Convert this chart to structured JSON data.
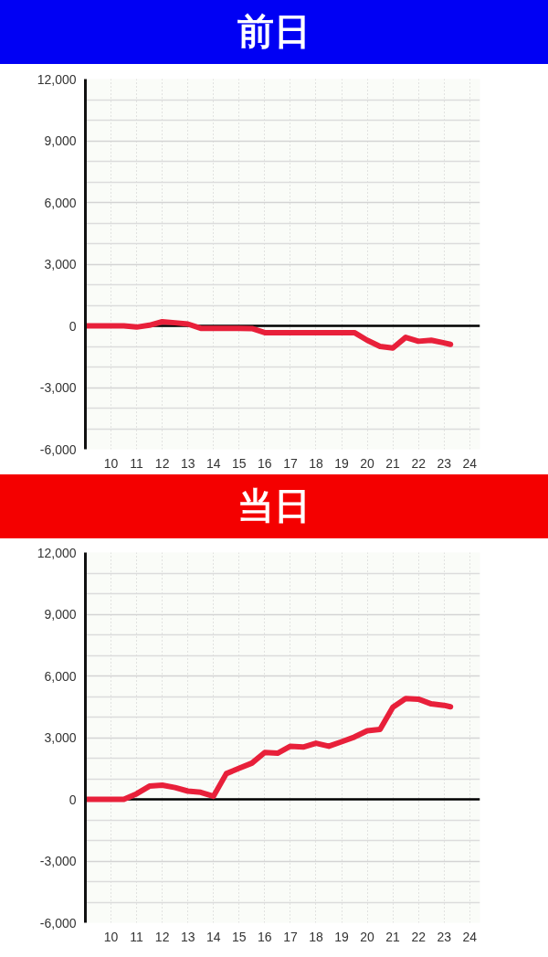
{
  "chart_data": [
    {
      "type": "line",
      "title": "前日",
      "x": [
        9,
        9.5,
        10,
        10.5,
        11,
        11.5,
        12,
        12.5,
        13,
        13.5,
        14,
        14.5,
        15,
        15.5,
        16,
        16.5,
        17,
        17.5,
        18,
        18.5,
        19,
        19.5,
        20,
        20.5,
        21,
        21.5,
        22,
        22.5,
        23,
        23.25
      ],
      "series": [
        {
          "color": "#e8203a",
          "values": [
            0,
            0,
            0,
            0,
            -60,
            30,
            200,
            150,
            90,
            -120,
            -120,
            -120,
            -120,
            -130,
            -330,
            -330,
            -330,
            -330,
            -330,
            -330,
            -330,
            -330,
            -700,
            -1000,
            -1080,
            -560,
            -750,
            -700,
            -830,
            -900
          ]
        }
      ],
      "xlim": [
        9,
        24.4
      ],
      "ylim": [
        -6000,
        12000
      ],
      "xticks": [
        10,
        11,
        12,
        13,
        14,
        15,
        16,
        17,
        18,
        19,
        20,
        21,
        22,
        23,
        24
      ],
      "yticks": [
        {
          "value": -6000,
          "label": "-6,000"
        },
        {
          "value": -3000,
          "label": "-3,000"
        },
        0,
        {
          "value": 3000,
          "label": "3,000"
        },
        {
          "value": 6000,
          "label": "6,000"
        },
        {
          "value": 9000,
          "label": "9,000"
        },
        {
          "value": 12000,
          "label": "12,000"
        }
      ],
      "grid": true,
      "ref_lines": [
        {
          "axis": "y",
          "value": 0,
          "color": "#000000"
        }
      ]
    },
    {
      "type": "line",
      "title": "当日",
      "x": [
        9,
        9.5,
        10,
        10.5,
        11,
        11.5,
        12,
        12.5,
        13,
        13.5,
        14,
        14.5,
        15,
        15.5,
        16,
        16.5,
        17,
        17.5,
        18,
        18.5,
        19,
        19.5,
        20,
        20.5,
        21,
        21.5,
        22,
        22.5,
        23,
        23.25
      ],
      "series": [
        {
          "color": "#e8203a",
          "values": [
            0,
            0,
            0,
            0,
            270,
            640,
            690,
            570,
            400,
            340,
            150,
            1250,
            1510,
            1760,
            2280,
            2240,
            2580,
            2540,
            2730,
            2580,
            2800,
            3030,
            3330,
            3400,
            4480,
            4900,
            4870,
            4640,
            4570,
            4500
          ]
        }
      ],
      "xlim": [
        9,
        24.4
      ],
      "ylim": [
        -6000,
        12000
      ],
      "xticks": [
        10,
        11,
        12,
        13,
        14,
        15,
        16,
        17,
        18,
        19,
        20,
        21,
        22,
        23,
        24
      ],
      "yticks": [
        {
          "value": -6000,
          "label": "-6,000"
        },
        {
          "value": -3000,
          "label": "-3,000"
        },
        0,
        {
          "value": 3000,
          "label": "3,000"
        },
        {
          "value": 6000,
          "label": "6,000"
        },
        {
          "value": 9000,
          "label": "9,000"
        },
        {
          "value": 12000,
          "label": "12,000"
        }
      ],
      "grid": true,
      "ref_lines": [
        {
          "axis": "y",
          "value": 0,
          "color": "#000000"
        }
      ]
    }
  ]
}
